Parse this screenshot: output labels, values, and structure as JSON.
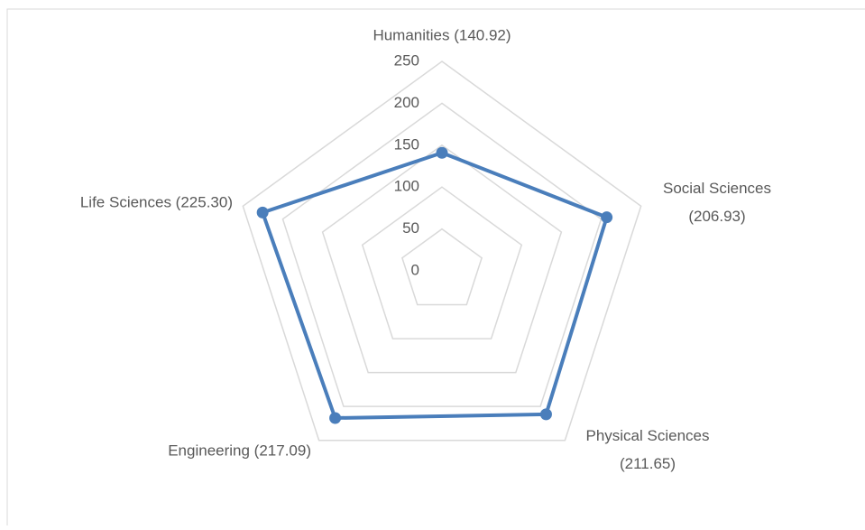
{
  "chart_data": {
    "type": "radar",
    "categories": [
      "Humanities (140.92)",
      "Social Sciences (206.93)",
      "Physical Sciences (211.65)",
      "Engineering (217.09)",
      "Life Sciences (225.30)"
    ],
    "series": [
      {
        "color": "#4a7ebb",
        "values": [
          140.92,
          206.93,
          211.65,
          217.09,
          225.3
        ]
      }
    ],
    "ylim": [
      0,
      250
    ],
    "yticks": [
      0,
      50,
      100,
      150,
      200,
      250
    ],
    "grid": true
  }
}
